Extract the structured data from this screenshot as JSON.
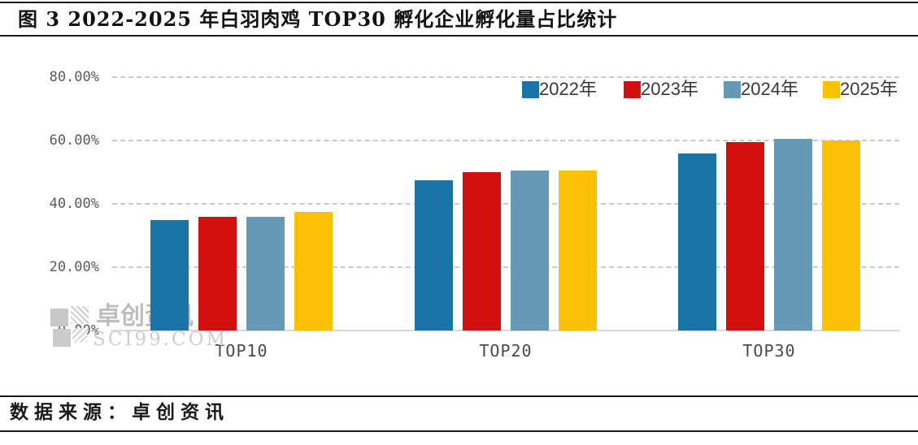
{
  "title": "图 3 2022-2025 年白羽肉鸡 TOP30 孵化企业孵化量占比统计",
  "source": "数据来源：卓创资讯",
  "watermark": {
    "logo": "sci99-checker-logo",
    "text": "卓创资讯",
    "subtext": "SCI99.COM"
  },
  "chart_data": {
    "type": "bar",
    "title": "图 3 2022-2025 年白羽肉鸡 TOP30 孵化企业孵化量占比统计",
    "categories": [
      "TOP10",
      "TOP20",
      "TOP30"
    ],
    "series": [
      {
        "name": "2022年",
        "color": "#1b74a8",
        "values": [
          35.0,
          47.5,
          56.0
        ]
      },
      {
        "name": "2023年",
        "color": "#d21010",
        "values": [
          36.0,
          50.0,
          59.5
        ]
      },
      {
        "name": "2024年",
        "color": "#6699b6",
        "values": [
          36.0,
          50.5,
          60.5
        ]
      },
      {
        "name": "2025年",
        "color": "#fcc005",
        "values": [
          37.5,
          50.5,
          60.0
        ]
      }
    ],
    "xlabel": "",
    "ylabel": "",
    "ylim": [
      0,
      80
    ],
    "yticks": [
      {
        "label": "80.00%",
        "value": 80
      },
      {
        "label": "60.00%",
        "value": 60
      },
      {
        "label": "40.00%",
        "value": 40
      },
      {
        "label": "20.00%",
        "value": 20
      },
      {
        "label": "0.00%",
        "value": 0
      }
    ],
    "grid": "horizontal-dashed",
    "legend_position": "top-right",
    "colors": {
      "gridline": "#c9c9c9",
      "axis_line": "#d8d8d8",
      "tick_text": "#5a5a5a",
      "category_text": "#4a4a4a",
      "legend_text": "#383838"
    }
  }
}
